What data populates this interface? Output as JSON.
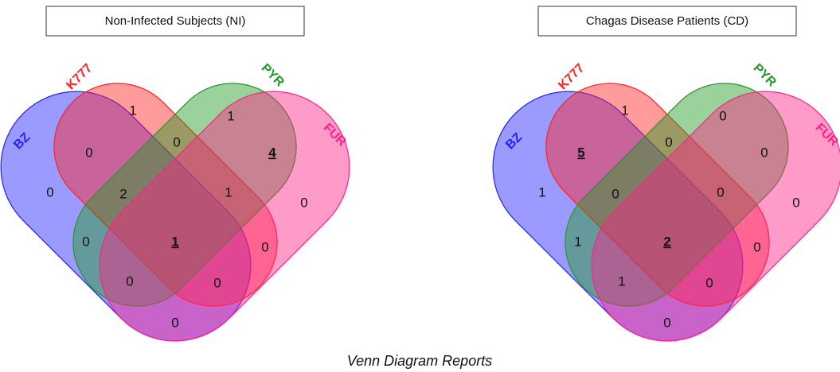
{
  "diagrams": [
    {
      "title": "Non-Infected Subjects (NI)",
      "sets": [
        {
          "name": "BZ",
          "color": "#2222ff"
        },
        {
          "name": "K777",
          "color": "#ff2222"
        },
        {
          "name": "PYR",
          "color": "#229922"
        },
        {
          "name": "FUR",
          "color": "#ff2288"
        }
      ],
      "regions": [
        {
          "sets": "K777",
          "value": 1
        },
        {
          "sets": "PYR",
          "value": 1
        },
        {
          "sets": "BZ",
          "value": 0
        },
        {
          "sets": "FUR",
          "value": 0
        },
        {
          "sets": "BZ K777",
          "value": 0
        },
        {
          "sets": "K777 PYR",
          "value": 0
        },
        {
          "sets": "PYR FUR",
          "value": 4,
          "underlined": true
        },
        {
          "sets": "BZ K777 PYR",
          "value": 2
        },
        {
          "sets": "K777 PYR FUR",
          "value": 1
        },
        {
          "sets": "BZ PYR",
          "value": 0
        },
        {
          "sets": "BZ K777 PYR FUR",
          "value": 1,
          "underlined": true
        },
        {
          "sets": "K777 FUR",
          "value": 0
        },
        {
          "sets": "BZ PYR FUR",
          "value": 0
        },
        {
          "sets": "BZ K777 FUR",
          "value": 0
        },
        {
          "sets": "BZ FUR",
          "value": 0
        }
      ]
    },
    {
      "title": "Chagas Disease Patients (CD)",
      "sets": [
        {
          "name": "BZ",
          "color": "#2222ff"
        },
        {
          "name": "K777",
          "color": "#ff2222"
        },
        {
          "name": "PYR",
          "color": "#229922"
        },
        {
          "name": "FUR",
          "color": "#ff2288"
        }
      ],
      "regions": [
        {
          "sets": "K777",
          "value": 1
        },
        {
          "sets": "PYR",
          "value": 0
        },
        {
          "sets": "BZ",
          "value": 1
        },
        {
          "sets": "FUR",
          "value": 0
        },
        {
          "sets": "BZ K777",
          "value": 5,
          "underlined": true
        },
        {
          "sets": "K777 PYR",
          "value": 0
        },
        {
          "sets": "PYR FUR",
          "value": 0
        },
        {
          "sets": "BZ K777 PYR",
          "value": 0
        },
        {
          "sets": "K777 PYR FUR",
          "value": 0
        },
        {
          "sets": "BZ PYR",
          "value": 1
        },
        {
          "sets": "BZ K777 PYR FUR",
          "value": 2,
          "underlined": true
        },
        {
          "sets": "K777 FUR",
          "value": 0
        },
        {
          "sets": "BZ PYR FUR",
          "value": 1
        },
        {
          "sets": "BZ K777 FUR",
          "value": 0
        },
        {
          "sets": "BZ FUR",
          "value": 0
        }
      ]
    }
  ],
  "caption": "Venn Diagram Reports"
}
